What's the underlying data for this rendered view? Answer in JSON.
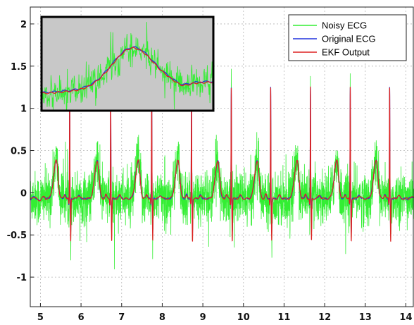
{
  "chart_data": {
    "type": "line",
    "title": "",
    "xlabel": "",
    "ylabel": "",
    "xlim": [
      4.75,
      14.2
    ],
    "ylim": [
      -1.35,
      2.2
    ],
    "x_ticks": [
      5,
      6,
      7,
      8,
      9,
      10,
      11,
      12,
      13,
      14
    ],
    "y_ticks": [
      -1,
      -0.5,
      0,
      0.5,
      1,
      1.5,
      2
    ],
    "grid": true,
    "legend_position": "top-right",
    "beat_period": 1.0,
    "beat_onsets": [
      5.72,
      6.73,
      7.74,
      8.72,
      9.7,
      10.67,
      11.65,
      12.63,
      13.6
    ],
    "series": [
      {
        "name": "Noisy ECG",
        "color": "#33ee33",
        "noise_amplitude": 0.28
      },
      {
        "name": "Original ECG",
        "color": "#2233dd",
        "r_peak": 1.25,
        "s_trough": -0.45
      },
      {
        "name": "EKF Output",
        "color": "#dd2222",
        "r_peak": 1.25,
        "s_trough": -0.55
      }
    ],
    "inset": {
      "background": "#c8c8c8",
      "border": "#000000",
      "content": "zoomed T-wave segment (noisy, original, EKF output)"
    }
  }
}
